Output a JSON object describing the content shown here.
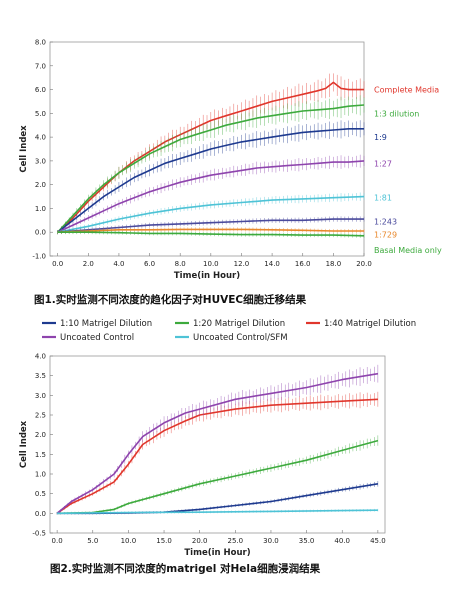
{
  "chart_data": [
    {
      "type": "line",
      "caption": "图1.实时监测不同浓度的趋化因子对HUVEC细胞迁移结果",
      "xlabel": "Time(in Hour)",
      "ylabel": "Cell Index",
      "xlim": [
        -0.5,
        20
      ],
      "ylim": [
        -1.0,
        8.0
      ],
      "xticks": [
        "0.0",
        "2.0",
        "4.0",
        "6.0",
        "8.0",
        "10.0",
        "12.0",
        "14.0",
        "16.0",
        "18.0",
        "20.0"
      ],
      "yticks": [
        "-1.0",
        "0.0",
        "1.0",
        "2.0",
        "3.0",
        "4.0",
        "5.0",
        "6.0",
        "7.0",
        "8.0"
      ],
      "series": [
        {
          "name": "Complete Media",
          "color": "#e0362c",
          "x": [
            0,
            1,
            2,
            3,
            4,
            5,
            6,
            7,
            8,
            9,
            10,
            11,
            12,
            13,
            14,
            15,
            16,
            17,
            17.5,
            18,
            18.5,
            19,
            20
          ],
          "y": [
            0,
            0.6,
            1.3,
            1.9,
            2.5,
            3.0,
            3.4,
            3.8,
            4.1,
            4.4,
            4.7,
            4.9,
            5.1,
            5.3,
            5.5,
            5.65,
            5.8,
            5.95,
            6.05,
            6.3,
            6.05,
            6.0,
            6.0
          ]
        },
        {
          "name": "1:3 dilution",
          "color": "#3daa3d",
          "x": [
            0,
            1,
            2,
            3,
            4,
            5,
            6,
            7,
            8,
            9,
            10,
            11,
            12,
            13,
            14,
            15,
            16,
            17,
            18,
            19,
            20
          ],
          "y": [
            0,
            0.7,
            1.4,
            2.0,
            2.5,
            2.9,
            3.3,
            3.6,
            3.9,
            4.1,
            4.3,
            4.5,
            4.65,
            4.8,
            4.9,
            5.0,
            5.1,
            5.15,
            5.2,
            5.3,
            5.35
          ]
        },
        {
          "name": "1:9",
          "color": "#1e3a8f",
          "x": [
            0,
            1,
            2,
            3,
            4,
            5,
            6,
            7,
            8,
            9,
            10,
            11,
            12,
            13,
            14,
            15,
            16,
            17,
            18,
            19,
            20
          ],
          "y": [
            0,
            0.5,
            1.0,
            1.5,
            1.9,
            2.3,
            2.6,
            2.9,
            3.1,
            3.3,
            3.5,
            3.65,
            3.8,
            3.9,
            4.0,
            4.1,
            4.2,
            4.25,
            4.3,
            4.35,
            4.35
          ]
        },
        {
          "name": "1:27",
          "color": "#8e44ad",
          "x": [
            0,
            1,
            2,
            3,
            4,
            5,
            6,
            7,
            8,
            9,
            10,
            11,
            12,
            13,
            14,
            15,
            16,
            17,
            18,
            19,
            20
          ],
          "y": [
            0,
            0.3,
            0.6,
            0.9,
            1.2,
            1.45,
            1.7,
            1.9,
            2.1,
            2.25,
            2.4,
            2.5,
            2.6,
            2.7,
            2.75,
            2.8,
            2.85,
            2.9,
            2.95,
            2.95,
            3.0
          ]
        },
        {
          "name": "1:81",
          "color": "#4ec3d6",
          "x": [
            0,
            2,
            4,
            6,
            8,
            10,
            12,
            14,
            16,
            18,
            20
          ],
          "y": [
            0,
            0.25,
            0.55,
            0.8,
            1.0,
            1.15,
            1.25,
            1.35,
            1.4,
            1.45,
            1.5
          ]
        },
        {
          "name": "1:243",
          "color": "#4a4a9c",
          "x": [
            0,
            2,
            4,
            6,
            8,
            10,
            12,
            14,
            16,
            18,
            20
          ],
          "y": [
            0,
            0.1,
            0.2,
            0.3,
            0.35,
            0.4,
            0.45,
            0.5,
            0.5,
            0.55,
            0.55
          ]
        },
        {
          "name": "1:729",
          "color": "#e8882c",
          "x": [
            0,
            2,
            4,
            6,
            8,
            10,
            12,
            14,
            16,
            18,
            20
          ],
          "y": [
            0,
            0.05,
            0.1,
            0.1,
            0.12,
            0.12,
            0.12,
            0.1,
            0.08,
            0.05,
            0.05
          ]
        },
        {
          "name": "Basal Media only",
          "color": "#3daa3d",
          "x": [
            0,
            2,
            4,
            6,
            8,
            10,
            12,
            14,
            16,
            18,
            20
          ],
          "y": [
            0,
            0.0,
            -0.02,
            -0.05,
            -0.05,
            -0.08,
            -0.1,
            -0.1,
            -0.12,
            -0.12,
            -0.15
          ]
        }
      ],
      "labels": [
        {
          "text": "Complete Media",
          "y": 6.0,
          "color": "#e0362c"
        },
        {
          "text": "1:3 dilution",
          "y": 5.0,
          "color": "#3daa3d"
        },
        {
          "text": "1:9",
          "y": 4.0,
          "color": "#1e3a8f"
        },
        {
          "text": "1:27",
          "y": 2.9,
          "color": "#8e44ad"
        },
        {
          "text": "1:81",
          "y": 1.45,
          "color": "#4ec3d6"
        },
        {
          "text": "1:243",
          "y": 0.45,
          "color": "#4a4a9c"
        },
        {
          "text": "1:729",
          "y": -0.1,
          "color": "#e8882c"
        },
        {
          "text": "Basal Media only",
          "y": -0.75,
          "color": "#3daa3d"
        }
      ]
    },
    {
      "type": "line",
      "caption": "图2.实时监测不同浓度的matrigel 对Hela细胞浸润结果",
      "xlabel": "Time(in Hour)",
      "ylabel": "Cell Index",
      "xlim": [
        -1,
        46
      ],
      "ylim": [
        -0.5,
        4.0
      ],
      "xticks": [
        "0.0",
        "5.0",
        "10.0",
        "15.0",
        "20.0",
        "25.0",
        "30.0",
        "35.0",
        "40.0",
        "45.0"
      ],
      "yticks": [
        "-0.5",
        "0.0",
        "0.5",
        "1.0",
        "1.5",
        "2.0",
        "2.5",
        "3.0",
        "3.5",
        "4.0"
      ],
      "legend": [
        {
          "text": "1:10 Matrigel Dilution",
          "color": "#1e3a8f"
        },
        {
          "text": "1:20 Matrigel Dilution",
          "color": "#3daa3d"
        },
        {
          "text": "1:40 Matrigel Dilution",
          "color": "#e0362c"
        },
        {
          "text": "Uncoated Control",
          "color": "#8e44ad"
        },
        {
          "text": "Uncoated Control/SFM",
          "color": "#4ec3d6"
        }
      ],
      "series": [
        {
          "name": "1:10 Matrigel Dilution",
          "color": "#1e3a8f",
          "x": [
            0,
            5,
            10,
            15,
            20,
            25,
            30,
            35,
            40,
            45
          ],
          "y": [
            0,
            0,
            0.01,
            0.03,
            0.1,
            0.2,
            0.3,
            0.45,
            0.6,
            0.75
          ]
        },
        {
          "name": "1:20 Matrigel Dilution",
          "color": "#3daa3d",
          "x": [
            0,
            5,
            8,
            10,
            15,
            20,
            25,
            30,
            35,
            40,
            45
          ],
          "y": [
            0,
            0.02,
            0.1,
            0.25,
            0.5,
            0.75,
            0.95,
            1.15,
            1.35,
            1.6,
            1.85
          ]
        },
        {
          "name": "1:40 Matrigel Dilution",
          "color": "#e0362c",
          "x": [
            0,
            2,
            5,
            8,
            10,
            12,
            15,
            18,
            20,
            25,
            30,
            35,
            40,
            45
          ],
          "y": [
            0,
            0.25,
            0.5,
            0.8,
            1.25,
            1.75,
            2.1,
            2.35,
            2.5,
            2.65,
            2.75,
            2.8,
            2.85,
            2.9
          ]
        },
        {
          "name": "Uncoated Control",
          "color": "#8e44ad",
          "x": [
            0,
            2,
            5,
            8,
            10,
            12,
            15,
            18,
            20,
            25,
            30,
            35,
            40,
            45
          ],
          "y": [
            0,
            0.3,
            0.6,
            1.0,
            1.5,
            1.95,
            2.3,
            2.55,
            2.65,
            2.9,
            3.05,
            3.2,
            3.4,
            3.55
          ]
        },
        {
          "name": "Uncoated Control/SFM",
          "color": "#4ec3d6",
          "x": [
            0,
            10,
            20,
            30,
            40,
            45
          ],
          "y": [
            0,
            0.02,
            0.03,
            0.05,
            0.07,
            0.08
          ]
        }
      ]
    }
  ]
}
